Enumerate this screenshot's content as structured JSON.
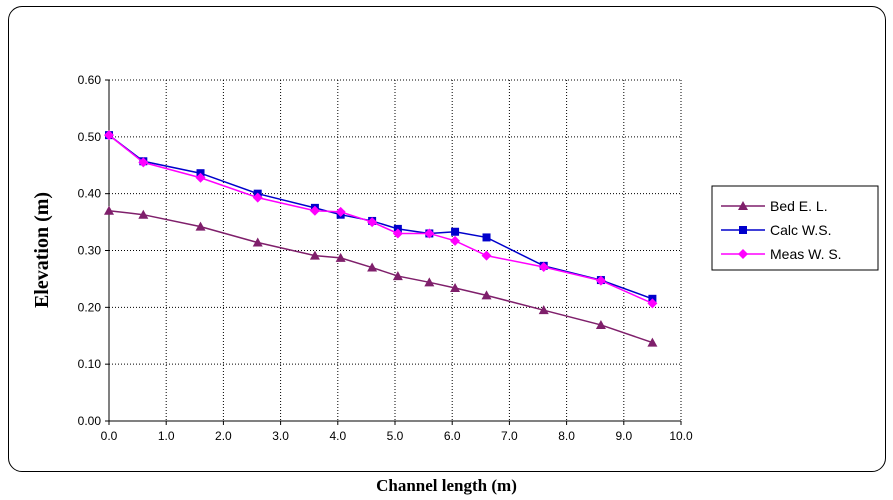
{
  "chart_data": {
    "type": "line",
    "xlabel": "Channel length (m)",
    "ylabel": "Elevation (m)",
    "xlim": [
      0,
      10
    ],
    "ylim": [
      0,
      0.6
    ],
    "x_ticks": [
      "0.0",
      "1.0",
      "2.0",
      "3.0",
      "4.0",
      "5.0",
      "6.0",
      "7.0",
      "8.0",
      "9.0",
      "10.0"
    ],
    "y_ticks": [
      "0.00",
      "0.10",
      "0.20",
      "0.30",
      "0.40",
      "0.50",
      "0.60"
    ],
    "grid": "dotted",
    "legend_position": "right",
    "series": [
      {
        "name": "Bed E. L.",
        "color": "#7f1f6b",
        "marker": "triangle",
        "x": [
          0.0,
          0.6,
          1.6,
          2.6,
          3.6,
          4.05,
          4.6,
          5.05,
          5.6,
          6.05,
          6.6,
          7.6,
          8.6,
          9.5
        ],
        "y": [
          0.37,
          0.363,
          0.342,
          0.314,
          0.291,
          0.287,
          0.27,
          0.255,
          0.244,
          0.234,
          0.221,
          0.195,
          0.169,
          0.138
        ]
      },
      {
        "name": "Calc W.S.",
        "color": "#0000cc",
        "marker": "square",
        "x": [
          0.0,
          0.6,
          1.6,
          2.6,
          3.6,
          4.05,
          4.6,
          5.05,
          5.6,
          6.05,
          6.6,
          7.6,
          8.6,
          9.5
        ],
        "y": [
          0.503,
          0.457,
          0.436,
          0.4,
          0.375,
          0.363,
          0.352,
          0.338,
          0.33,
          0.333,
          0.323,
          0.273,
          0.248,
          0.215
        ]
      },
      {
        "name": "Meas W. S.",
        "color": "#ff00ff",
        "marker": "diamond",
        "x": [
          0.0,
          0.6,
          1.6,
          2.6,
          3.6,
          4.05,
          4.6,
          5.05,
          5.6,
          6.05,
          6.6,
          7.6,
          8.6,
          9.5
        ],
        "y": [
          0.503,
          0.455,
          0.428,
          0.393,
          0.37,
          0.368,
          0.35,
          0.33,
          0.33,
          0.317,
          0.291,
          0.271,
          0.247,
          0.207
        ]
      }
    ]
  }
}
